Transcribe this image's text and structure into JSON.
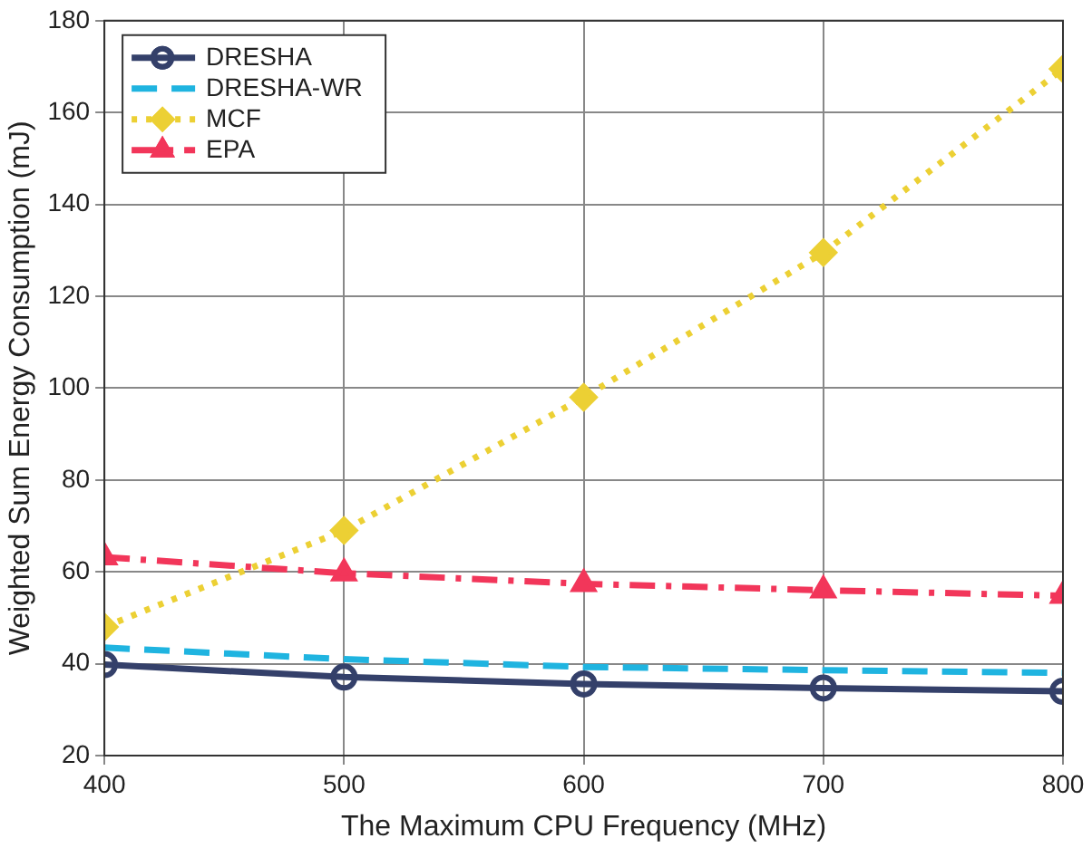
{
  "chart_data": {
    "type": "line",
    "xlabel": "The Maximum CPU Frequency (MHz)",
    "ylabel": "Weighted Sum Energy Consumption (mJ)",
    "x": [
      400,
      500,
      600,
      700,
      800
    ],
    "xlim": [
      400,
      800
    ],
    "xticks": [
      400,
      500,
      600,
      700,
      800
    ],
    "ylim": [
      20,
      180
    ],
    "yticks": [
      20,
      40,
      60,
      80,
      100,
      120,
      140,
      160,
      180
    ],
    "grid": true,
    "legend": "top left",
    "series": [
      {
        "name": "DRESHA",
        "color": "#34406a",
        "values": [
          39.8,
          37.1,
          35.6,
          34.7,
          34.0
        ],
        "marker": "circle",
        "line_style": "solid"
      },
      {
        "name": "DRESHA-WR",
        "color": "#1fb4e0",
        "values": [
          43.5,
          41.0,
          39.3,
          38.6,
          38.0
        ],
        "marker": "none",
        "line_style": "dashed"
      },
      {
        "name": "MCF",
        "color": "#ecd034",
        "values": [
          48,
          69,
          98,
          129.5,
          169.5
        ],
        "marker": "diamond",
        "line_style": "dotted"
      },
      {
        "name": "EPA",
        "color": "#f2365a",
        "values": [
          63.2,
          59.7,
          57.4,
          56.0,
          54.8
        ],
        "marker": "triangle",
        "line_style": "dashdot"
      }
    ]
  }
}
